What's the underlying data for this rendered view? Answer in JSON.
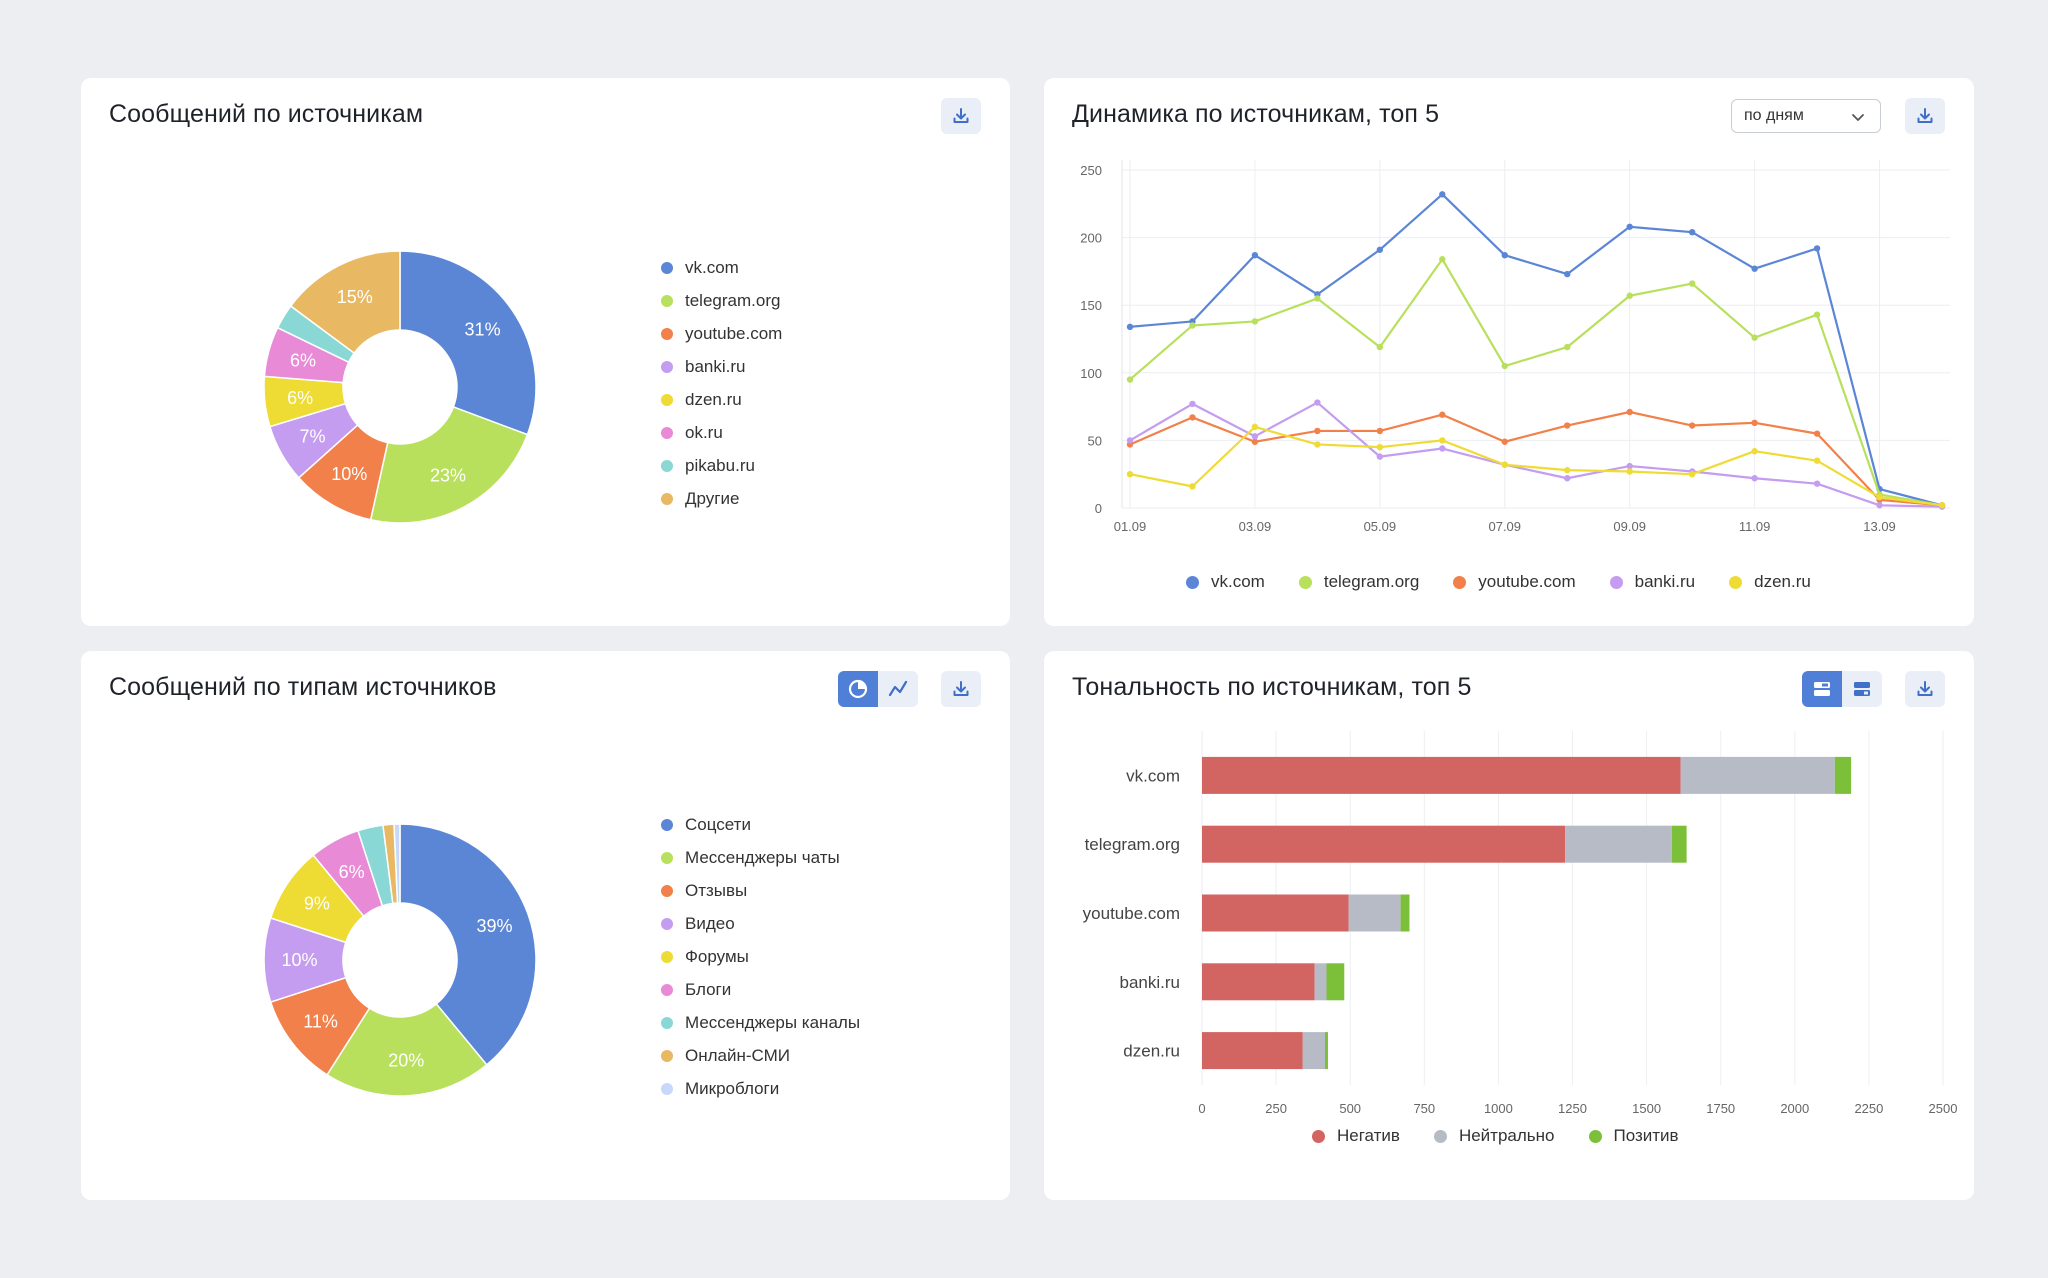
{
  "colors": {
    "blue": "#5b86d6",
    "green": "#b8e05c",
    "orange": "#f2804a",
    "purple": "#c49cf0",
    "yellow": "#eedb34",
    "pink": "#e98ad6",
    "teal": "#8ad8d6",
    "sand": "#e8b863",
    "lavender": "#c8d8fa",
    "negative": "#d26462",
    "neutral": "#b6bbc6",
    "positive": "#7cc03a"
  },
  "cards": {
    "sources": {
      "title": "Сообщений по источникам",
      "download_icon": "download-icon"
    },
    "dynamics": {
      "title": "Динамика по источникам, топ 5",
      "period_select": "по дням",
      "download_icon": "download-icon"
    },
    "types": {
      "title": "Сообщений по типам источников",
      "toggle_pie_icon": "pie-chart-icon",
      "toggle_line_icon": "line-chart-icon",
      "download_icon": "download-icon"
    },
    "tonality": {
      "title": "Тональность по источникам, топ 5",
      "toggle_stacked_icon": "stacked-bar-icon",
      "toggle_grouped_icon": "grouped-bar-icon",
      "download_icon": "download-icon"
    }
  },
  "chart_data": [
    {
      "type": "pie",
      "title": "Сообщений по источникам",
      "donut": true,
      "slices": [
        {
          "label": "vk.com",
          "value": 31,
          "display": "31%",
          "color": "#5b86d6"
        },
        {
          "label": "telegram.org",
          "value": 23,
          "display": "23%",
          "color": "#b8e05c"
        },
        {
          "label": "youtube.com",
          "value": 10,
          "display": "10%",
          "color": "#f2804a"
        },
        {
          "label": "banki.ru",
          "value": 7,
          "display": "7%",
          "color": "#c49cf0"
        },
        {
          "label": "dzen.ru",
          "value": 6,
          "display": "6%",
          "color": "#eedb34"
        },
        {
          "label": "ok.ru",
          "value": 6,
          "display": "6%",
          "color": "#e98ad6"
        },
        {
          "label": "pikabu.ru",
          "value": 3,
          "display": "",
          "color": "#8ad8d6"
        },
        {
          "label": "Другие",
          "value": 15,
          "display": "15%",
          "color": "#e8b863"
        }
      ]
    },
    {
      "type": "line",
      "title": "Динамика по источникам, топ 5",
      "x": [
        "01.09",
        "02.09",
        "03.09",
        "04.09",
        "05.09",
        "06.09",
        "07.09",
        "08.09",
        "09.09",
        "10.09",
        "11.09",
        "12.09",
        "13.09",
        "14.09"
      ],
      "xticks": [
        "01.09",
        "03.09",
        "05.09",
        "07.09",
        "09.09",
        "11.09",
        "13.09"
      ],
      "ylim": [
        0,
        250
      ],
      "yticks": [
        0,
        50,
        100,
        150,
        200,
        250
      ],
      "grid": true,
      "legend": "bottom",
      "series": [
        {
          "name": "vk.com",
          "color": "#5b86d6",
          "values": [
            134,
            138,
            187,
            158,
            191,
            232,
            187,
            173,
            208,
            204,
            177,
            192,
            14,
            2
          ]
        },
        {
          "name": "telegram.org",
          "color": "#b8e05c",
          "values": [
            95,
            135,
            138,
            155,
            119,
            184,
            105,
            119,
            157,
            166,
            126,
            143,
            10,
            2
          ]
        },
        {
          "name": "youtube.com",
          "color": "#f2804a",
          "values": [
            47,
            67,
            49,
            57,
            57,
            69,
            49,
            61,
            71,
            61,
            63,
            55,
            6,
            2
          ]
        },
        {
          "name": "banki.ru",
          "color": "#c49cf0",
          "values": [
            50,
            77,
            53,
            78,
            38,
            44,
            32,
            22,
            31,
            27,
            22,
            18,
            2,
            1
          ]
        },
        {
          "name": "dzen.ru",
          "color": "#eedb34",
          "values": [
            25,
            16,
            60,
            47,
            45,
            50,
            32,
            28,
            27,
            25,
            42,
            35,
            8,
            2
          ]
        }
      ]
    },
    {
      "type": "pie",
      "title": "Сообщений по типам источников",
      "donut": true,
      "slices": [
        {
          "label": "Соцсети",
          "value": 39,
          "display": "39%",
          "color": "#5b86d6"
        },
        {
          "label": "Мессенджеры чаты",
          "value": 20,
          "display": "20%",
          "color": "#b8e05c"
        },
        {
          "label": "Отзывы",
          "value": 11,
          "display": "11%",
          "color": "#f2804a"
        },
        {
          "label": "Видео",
          "value": 10,
          "display": "10%",
          "color": "#c49cf0"
        },
        {
          "label": "Форумы",
          "value": 9,
          "display": "9%",
          "color": "#eedb34"
        },
        {
          "label": "Блоги",
          "value": 6,
          "display": "6%",
          "color": "#e98ad6"
        },
        {
          "label": "Мессенджеры каналы",
          "value": 3,
          "display": "",
          "color": "#8ad8d6"
        },
        {
          "label": "Онлайн-СМИ",
          "value": 1.3,
          "display": "",
          "color": "#e8b863"
        },
        {
          "label": "Микроблоги",
          "value": 0.7,
          "display": "",
          "color": "#c8d8fa"
        }
      ]
    },
    {
      "type": "bar",
      "orientation": "horizontal",
      "stacked": true,
      "title": "Тональность по источникам, топ 5",
      "categories": [
        "vk.com",
        "telegram.org",
        "youtube.com",
        "banki.ru",
        "dzen.ru"
      ],
      "xlim": [
        0,
        2500
      ],
      "xticks": [
        0,
        250,
        500,
        750,
        1000,
        1250,
        1500,
        1750,
        2000,
        2250,
        2500
      ],
      "grid": true,
      "legend": "bottom",
      "series": [
        {
          "name": "Негатив",
          "color": "#d26462",
          "values": [
            1615,
            1225,
            495,
            380,
            340
          ]
        },
        {
          "name": "Нейтрально",
          "color": "#b6bbc6",
          "values": [
            520,
            360,
            175,
            40,
            75
          ]
        },
        {
          "name": "Позитив",
          "color": "#7cc03a",
          "values": [
            55,
            50,
            30,
            60,
            10
          ]
        }
      ]
    }
  ]
}
